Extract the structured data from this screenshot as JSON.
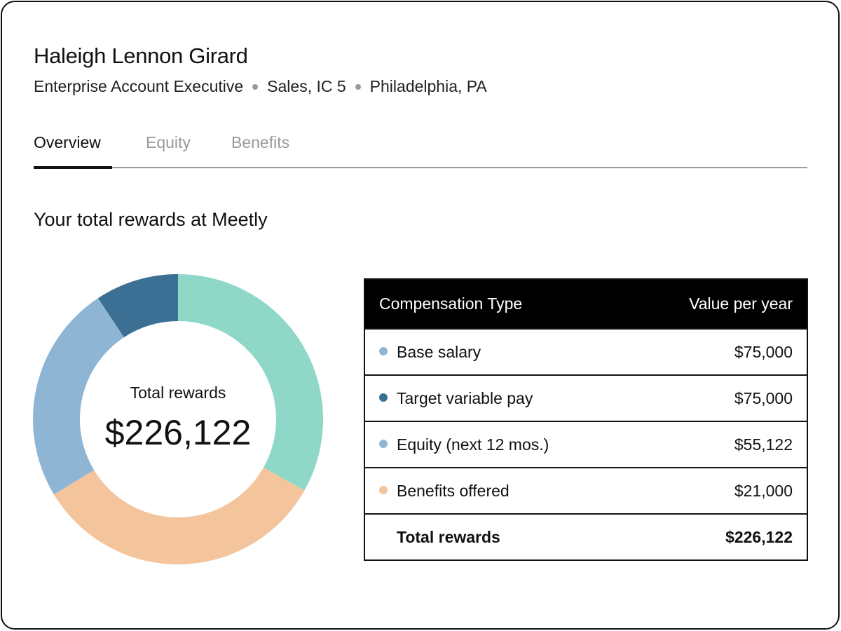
{
  "profile": {
    "name": "Haleigh Lennon Girard",
    "title": "Enterprise Account Executive",
    "department": "Sales, IC 5",
    "location": "Philadelphia, PA"
  },
  "tabs": [
    {
      "label": "Overview",
      "active": true
    },
    {
      "label": "Equity",
      "active": false
    },
    {
      "label": "Benefits",
      "active": false
    }
  ],
  "section_heading": "Your total rewards at Meetly",
  "donut": {
    "center_label": "Total rewards",
    "center_value": "$226,122"
  },
  "chart_data": {
    "type": "pie",
    "donut": true,
    "segments": [
      {
        "value": 75000,
        "color": "#8fd8c8"
      },
      {
        "value": 75000,
        "color": "#f4c49c"
      },
      {
        "value": 55122,
        "color": "#8fb5d4"
      },
      {
        "value": 21000,
        "color": "#3b6f94"
      }
    ]
  },
  "table": {
    "headers": [
      "Compensation Type",
      "Value per year"
    ],
    "rows": [
      {
        "label": "Base salary",
        "value": "$75,000",
        "color": "#8fb5d4"
      },
      {
        "label": "Target variable pay",
        "value": "$75,000",
        "color": "#3b6f94"
      },
      {
        "label": "Equity (next 12 mos.)",
        "value": "$55,122",
        "color": "#8fb5d4"
      },
      {
        "label": "Benefits offered",
        "value": "$21,000",
        "color": "#f4c49c"
      }
    ],
    "total": {
      "label": "Total rewards",
      "value": "$226,122"
    }
  }
}
